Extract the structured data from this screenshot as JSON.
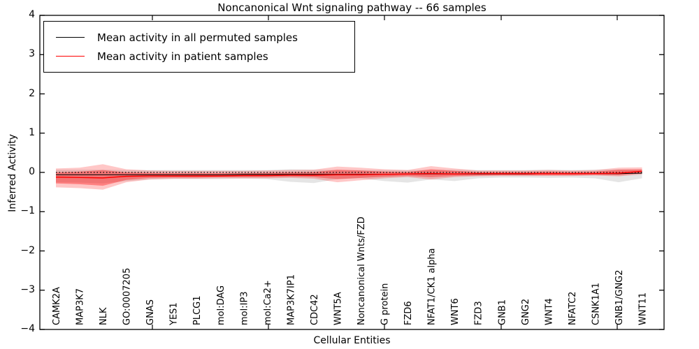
{
  "window": {
    "background": "#ffffff",
    "accent_red": "#ff0000",
    "line_black": "#000000"
  },
  "chart_data": {
    "type": "line",
    "title": "Noncanonical Wnt signaling pathway -- 66 samples",
    "xlabel": "Cellular Entities",
    "ylabel": "Inferred Activity",
    "ylim": [
      -4,
      4
    ],
    "yticks": [
      4,
      3,
      2,
      1,
      0,
      -1,
      -2,
      -3,
      -4
    ],
    "grid": false,
    "legend": {
      "position": "upper left",
      "entries": [
        {
          "label": "Mean activity in all permuted samples",
          "color": "#000000"
        },
        {
          "label": "Mean activity in patient samples",
          "color": "#ff0000"
        }
      ]
    },
    "zero_line": {
      "y": 0,
      "style": "dotted",
      "color": "#000000"
    },
    "categories": [
      "CAMK2A",
      "MAP3K7",
      "NLK",
      "GO:0007205",
      "GNAS",
      "YES1",
      "PLCG1",
      "mol:DAG",
      "mol:IP3",
      "mol:Ca2+",
      "MAP3K7IP1",
      "CDC42",
      "WNT5A",
      "Noncanonical Wnts/FZD",
      "G protein",
      "FZD6",
      "NFAT1/CK1 alpha",
      "WNT6",
      "FZD3",
      "GNB1",
      "GNG2",
      "WNT4",
      "NFATC2",
      "CSNK1A1",
      "GNB1/GNG2",
      "WNT11"
    ],
    "series": [
      {
        "name": "Mean activity in all permuted samples",
        "color": "#000000",
        "values": [
          -0.06,
          -0.06,
          -0.06,
          -0.06,
          -0.06,
          -0.06,
          -0.06,
          -0.06,
          -0.05,
          -0.05,
          -0.05,
          -0.05,
          -0.05,
          -0.05,
          -0.05,
          -0.04,
          -0.04,
          -0.04,
          -0.04,
          -0.04,
          -0.04,
          -0.03,
          -0.03,
          -0.03,
          -0.03,
          -0.02
        ]
      },
      {
        "name": "Mean activity in patient samples",
        "color": "#ff0000",
        "values": [
          -0.12,
          -0.13,
          -0.14,
          -0.1,
          -0.09,
          -0.09,
          -0.09,
          -0.09,
          -0.08,
          -0.08,
          -0.07,
          -0.07,
          -0.06,
          -0.06,
          -0.05,
          -0.04,
          -0.03,
          -0.04,
          -0.03,
          -0.03,
          -0.03,
          -0.03,
          -0.03,
          -0.03,
          -0.02,
          0.03
        ]
      }
    ],
    "bands": [
      {
        "name": "permuted-range-band",
        "color": "#000000",
        "opacity": 0.1,
        "high": [
          0.07,
          0.07,
          0.07,
          0.06,
          0.06,
          0.06,
          0.06,
          0.06,
          0.06,
          0.06,
          0.08,
          0.07,
          0.06,
          0.06,
          0.06,
          0.06,
          0.06,
          0.07,
          0.06,
          0.06,
          0.06,
          0.07,
          0.06,
          0.07,
          0.08,
          0.07
        ],
        "low": [
          -0.25,
          -0.26,
          -0.28,
          -0.22,
          -0.18,
          -0.17,
          -0.17,
          -0.17,
          -0.16,
          -0.17,
          -0.24,
          -0.27,
          -0.17,
          -0.15,
          -0.22,
          -0.26,
          -0.18,
          -0.22,
          -0.15,
          -0.13,
          -0.13,
          -0.14,
          -0.13,
          -0.15,
          -0.25,
          -0.15
        ]
      },
      {
        "name": "patient-range-band-outer",
        "color": "#ff0000",
        "opacity": 0.22,
        "high": [
          0.1,
          0.12,
          0.21,
          0.08,
          0.05,
          0.04,
          0.04,
          0.04,
          0.04,
          0.05,
          0.06,
          0.07,
          0.15,
          0.12,
          0.08,
          0.06,
          0.16,
          0.1,
          0.05,
          0.05,
          0.05,
          0.06,
          0.05,
          0.06,
          0.12,
          0.13
        ],
        "low": [
          -0.38,
          -0.4,
          -0.44,
          -0.25,
          -0.18,
          -0.16,
          -0.16,
          -0.15,
          -0.15,
          -0.15,
          -0.14,
          -0.16,
          -0.25,
          -0.2,
          -0.15,
          -0.12,
          -0.18,
          -0.12,
          -0.1,
          -0.09,
          -0.09,
          -0.09,
          -0.09,
          -0.08,
          -0.1,
          -0.05
        ],
        "name_note": "light outer red band"
      },
      {
        "name": "patient-range-band-inner",
        "color": "#ff0000",
        "opacity": 0.35,
        "high": [
          0.0,
          0.02,
          0.06,
          0.0,
          -0.01,
          -0.02,
          -0.02,
          -0.02,
          -0.02,
          -0.01,
          0.0,
          0.01,
          0.07,
          0.05,
          0.02,
          0.01,
          0.08,
          0.04,
          0.01,
          0.01,
          0.01,
          0.02,
          0.01,
          0.02,
          0.07,
          0.08
        ],
        "low": [
          -0.28,
          -0.3,
          -0.34,
          -0.19,
          -0.14,
          -0.13,
          -0.13,
          -0.12,
          -0.12,
          -0.12,
          -0.11,
          -0.12,
          -0.17,
          -0.14,
          -0.11,
          -0.09,
          -0.12,
          -0.09,
          -0.08,
          -0.07,
          -0.07,
          -0.07,
          -0.07,
          -0.06,
          -0.07,
          -0.02
        ]
      }
    ]
  }
}
